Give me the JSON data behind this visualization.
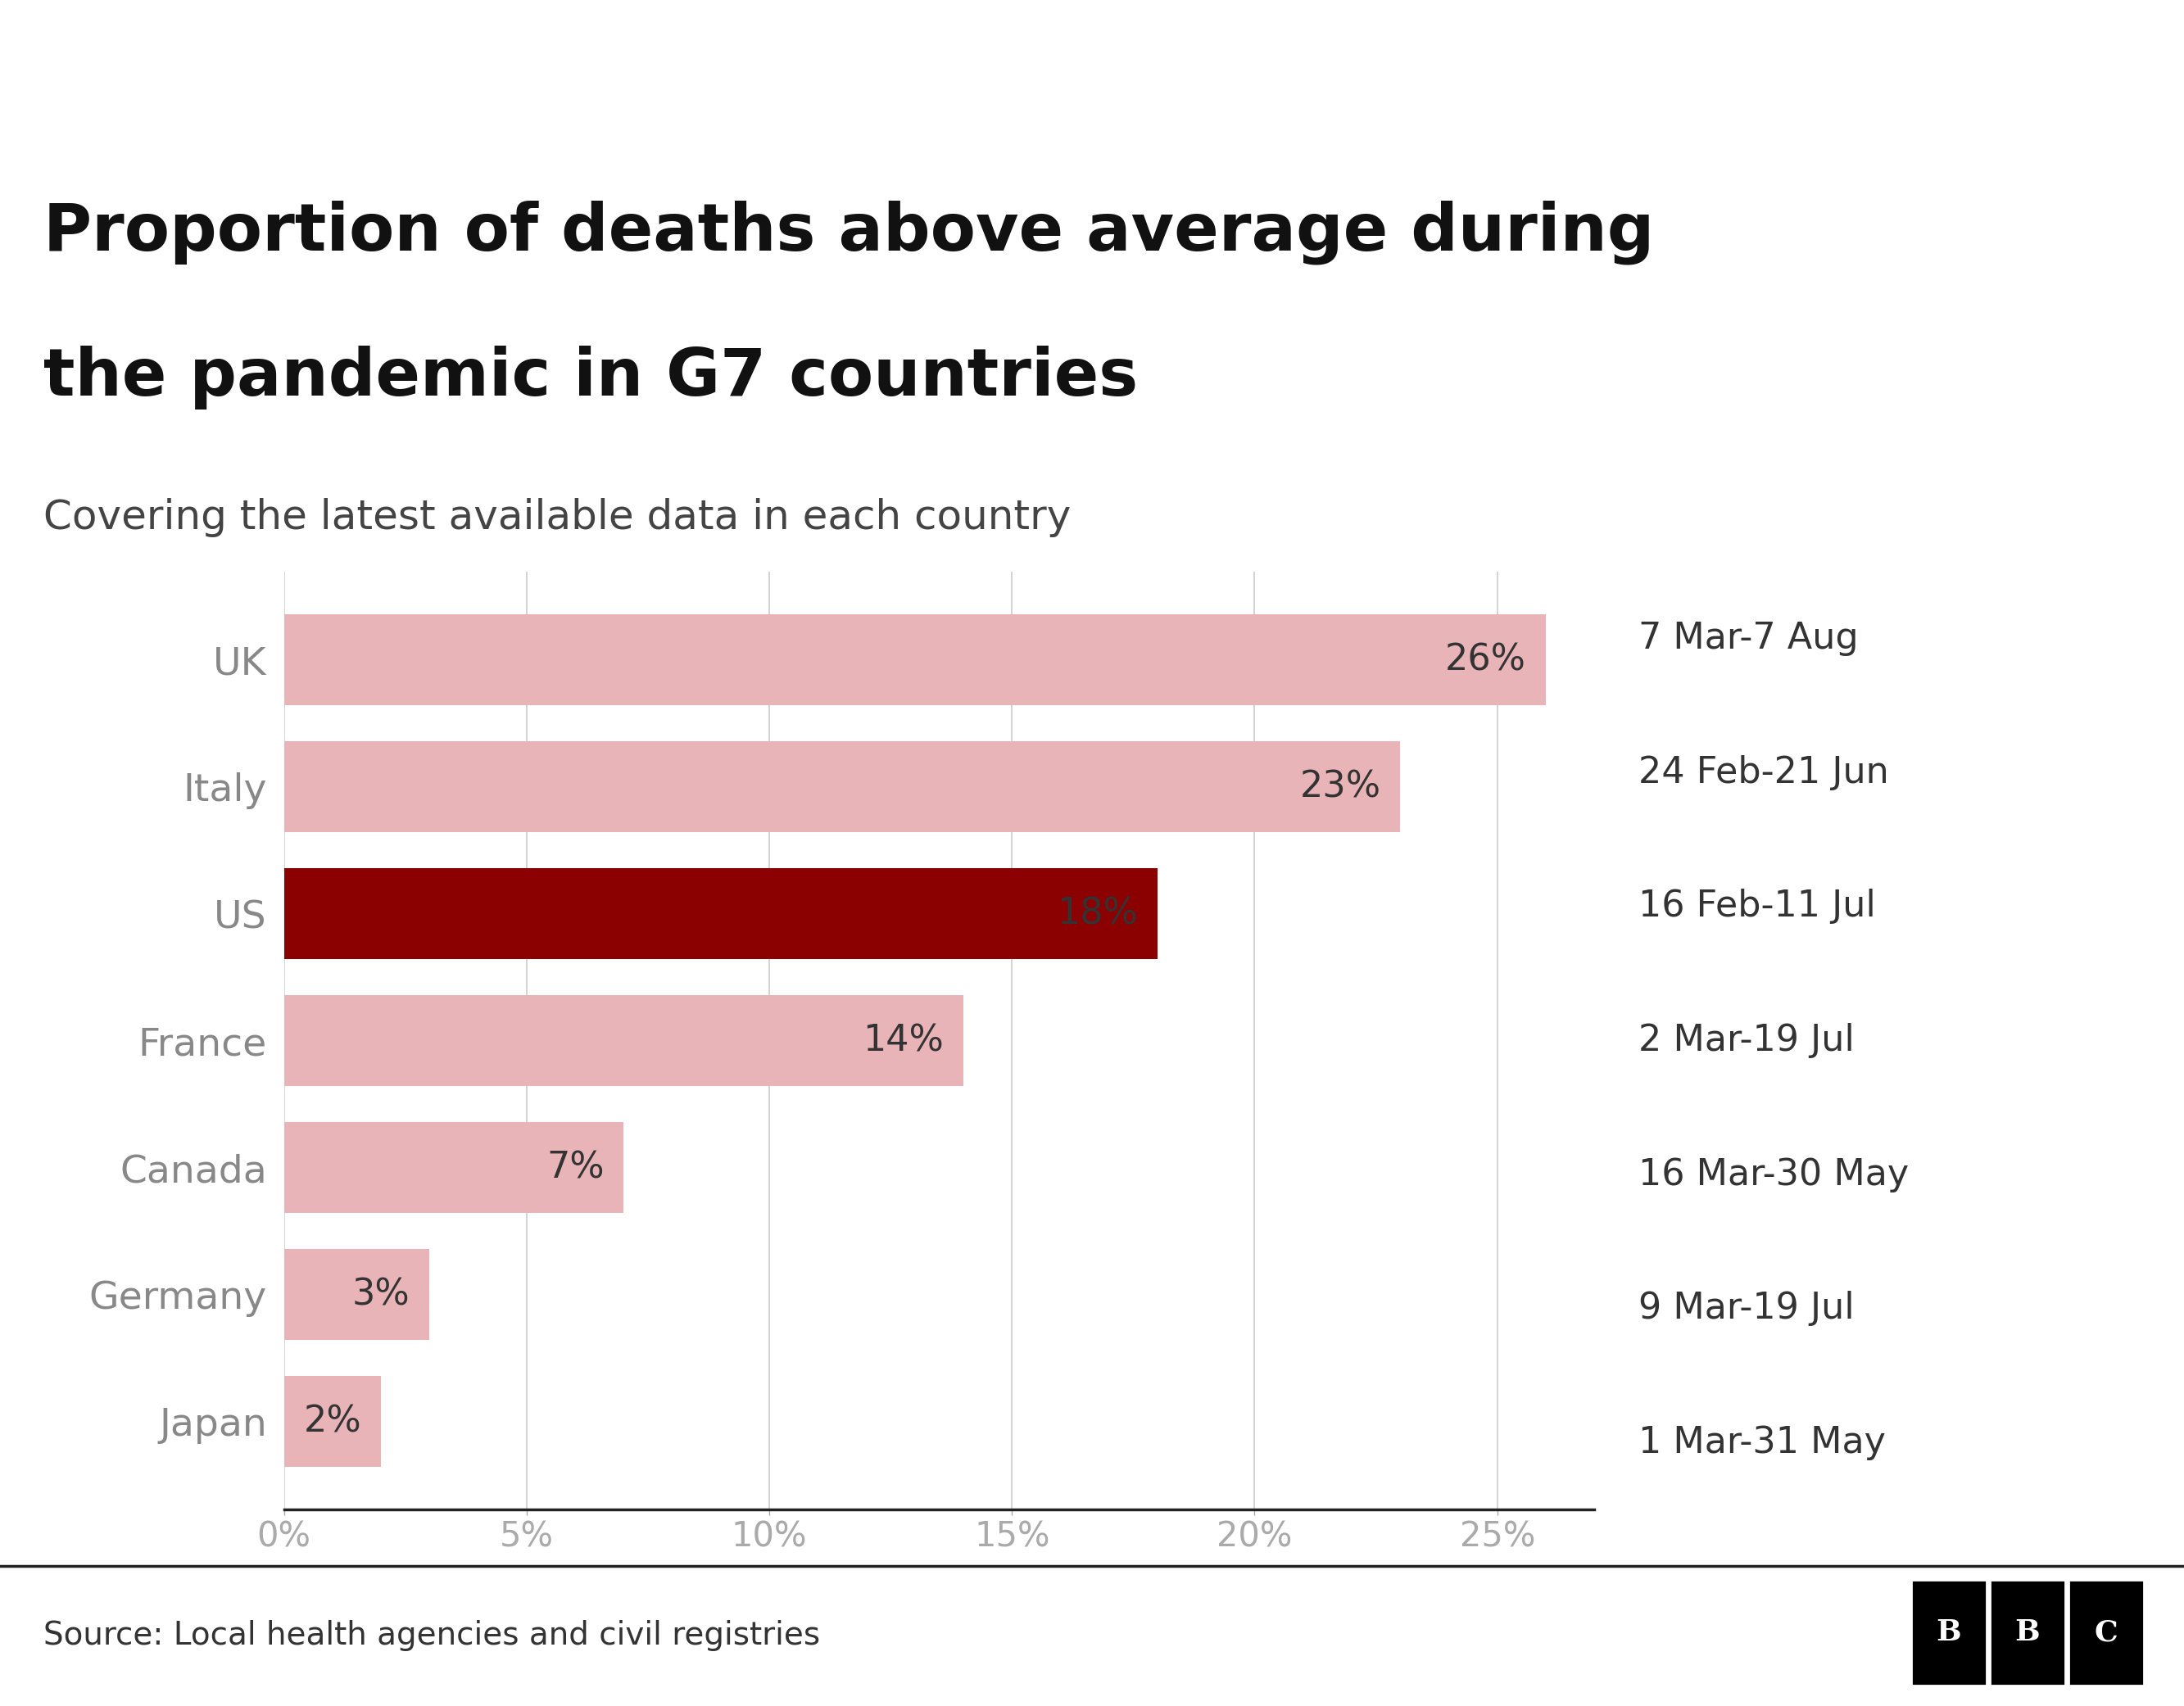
{
  "title_line1": "Proportion of deaths above average during",
  "title_line2": "the pandemic in G7 countries",
  "subtitle": "Covering the latest available data in each country",
  "source": "Source: Local health agencies and civil registries",
  "countries": [
    "UK",
    "Italy",
    "US",
    "France",
    "Canada",
    "Germany",
    "Japan"
  ],
  "values": [
    26,
    23,
    18,
    14,
    7,
    3,
    2
  ],
  "date_ranges": [
    "7 Mar-7 Aug",
    "24 Feb-21 Jun",
    "16 Feb-11 Jul",
    "2 Mar-19 Jul",
    "16 Mar-30 May",
    "9 Mar-19 Jul",
    "1 Mar-31 May"
  ],
  "bar_colors": [
    "#e8b4b8",
    "#e8b4b8",
    "#8b0000",
    "#e8b4b8",
    "#e8b4b8",
    "#e8b4b8",
    "#e8b4b8"
  ],
  "xlim": [
    0,
    27
  ],
  "xticks": [
    0,
    5,
    10,
    15,
    20,
    25
  ],
  "xticklabels": [
    "0%",
    "5%",
    "10%",
    "15%",
    "20%",
    "25%"
  ],
  "background_color": "#ffffff",
  "title_fontsize": 58,
  "subtitle_fontsize": 36,
  "country_label_fontsize": 34,
  "tick_fontsize": 30,
  "date_fontsize": 32,
  "source_fontsize": 28,
  "bar_label_fontsize": 32
}
